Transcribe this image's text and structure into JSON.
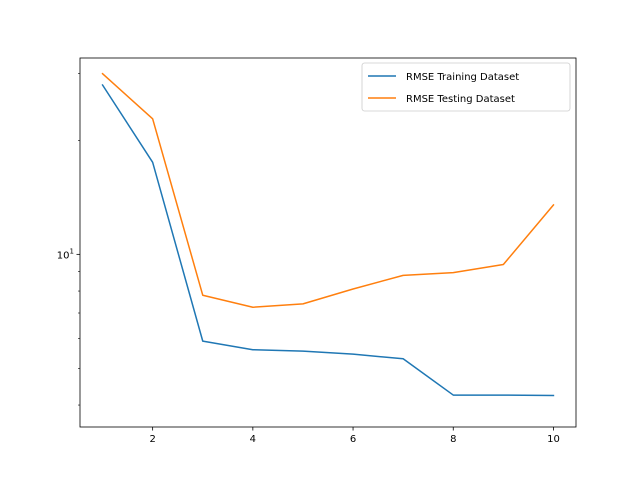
{
  "chart_data": {
    "type": "line",
    "title": "",
    "xlabel": "",
    "ylabel": "",
    "x": [
      1,
      2,
      3,
      4,
      5,
      6,
      7,
      8,
      9,
      10
    ],
    "xlim": [
      0.55,
      10.45
    ],
    "ylim": [
      3.5,
      33
    ],
    "yscale": "log",
    "xticks": [
      2,
      4,
      6,
      8,
      10
    ],
    "yticks": [
      {
        "value": 10,
        "base": "10",
        "exp": "1"
      }
    ],
    "grid": false,
    "legend_position": "top-right",
    "series": [
      {
        "name": "RMSE Training Dataset",
        "color": "#1f77b4",
        "values": [
          28.0,
          17.5,
          5.9,
          5.6,
          5.55,
          5.45,
          5.3,
          4.25,
          4.25,
          4.24
        ]
      },
      {
        "name": "RMSE Testing Dataset",
        "color": "#ff7f0e",
        "values": [
          30.0,
          22.8,
          7.8,
          7.25,
          7.4,
          8.1,
          8.8,
          8.95,
          9.4,
          13.5
        ]
      }
    ]
  }
}
